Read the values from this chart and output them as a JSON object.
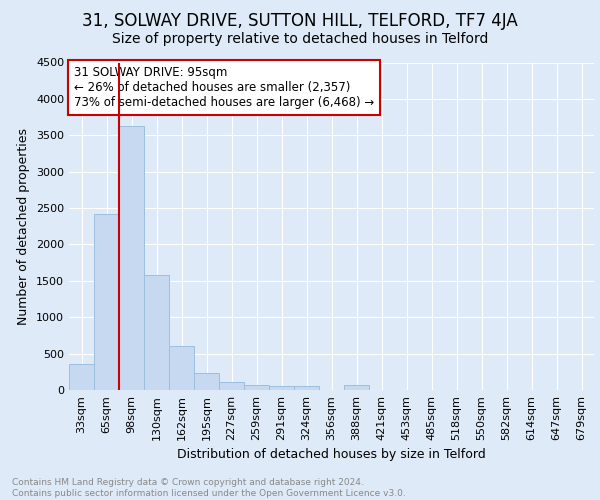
{
  "title_line1": "31, SOLWAY DRIVE, SUTTON HILL, TELFORD, TF7 4JA",
  "title_line2": "Size of property relative to detached houses in Telford",
  "xlabel": "Distribution of detached houses by size in Telford",
  "ylabel": "Number of detached properties",
  "categories": [
    "33sqm",
    "65sqm",
    "98sqm",
    "130sqm",
    "162sqm",
    "195sqm",
    "227sqm",
    "259sqm",
    "291sqm",
    "324sqm",
    "356sqm",
    "388sqm",
    "421sqm",
    "453sqm",
    "485sqm",
    "518sqm",
    "550sqm",
    "582sqm",
    "614sqm",
    "647sqm",
    "679sqm"
  ],
  "values": [
    360,
    2420,
    3630,
    1575,
    600,
    235,
    110,
    65,
    55,
    50,
    0,
    65,
    0,
    0,
    0,
    0,
    0,
    0,
    0,
    0,
    0
  ],
  "bar_color": "#c6d9f0",
  "bar_edge_color": "#9dbfdf",
  "red_line_index": 2,
  "annotation_line1": "31 SOLWAY DRIVE: 95sqm",
  "annotation_line2": "← 26% of detached houses are smaller (2,357)",
  "annotation_line3": "73% of semi-detached houses are larger (6,468) →",
  "annotation_box_color": "#ffffff",
  "annotation_box_edge": "#cc0000",
  "background_color": "#deeaf8",
  "plot_bg_color": "#deeaf8",
  "ylim": [
    0,
    4500
  ],
  "yticks": [
    0,
    500,
    1000,
    1500,
    2000,
    2500,
    3000,
    3500,
    4000,
    4500
  ],
  "grid_color": "#ffffff",
  "footer_text": "Contains HM Land Registry data © Crown copyright and database right 2024.\nContains public sector information licensed under the Open Government Licence v3.0.",
  "title1_fontsize": 12,
  "title2_fontsize": 10,
  "xlabel_fontsize": 9,
  "ylabel_fontsize": 9,
  "tick_fontsize": 8,
  "annotation_fontsize": 8.5,
  "footer_fontsize": 6.5
}
